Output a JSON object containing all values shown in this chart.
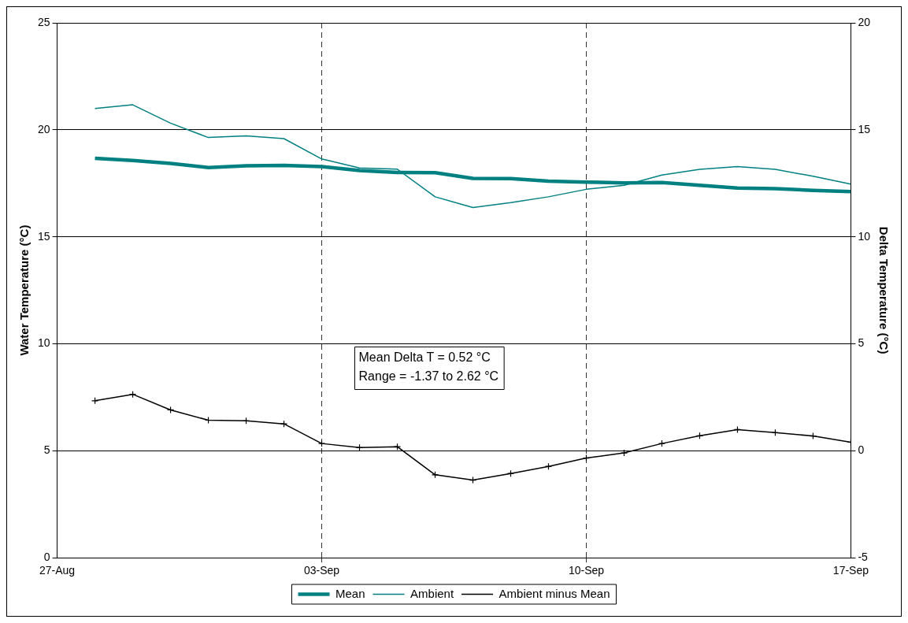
{
  "chart_data": {
    "type": "line",
    "ylabel": "Water Temperature (°C)",
    "y2label": "Delta Temperature (°C)",
    "x": [
      "--08-28",
      "--08-29",
      "--08-30",
      "--08-31",
      "--09-01",
      "--09-02",
      "--09-03",
      "--09-04",
      "--09-05",
      "--09-06",
      "--09-07",
      "--09-08",
      "--09-09",
      "--09-10",
      "--09-11",
      "--09-12",
      "--09-13",
      "--09-14",
      "--09-15",
      "--09-16",
      "--09-17"
    ],
    "xlim": [
      "--08-27",
      "--09-17"
    ],
    "xticks": [
      {
        "value": "--08-27",
        "label": "27-Aug"
      },
      {
        "value": "--09-03",
        "label": "03-Sep"
      },
      {
        "value": "--09-10",
        "label": "10-Sep"
      },
      {
        "value": "--09-17",
        "label": "17-Sep"
      }
    ],
    "ylim": [
      0,
      25
    ],
    "yticks": [
      0,
      5,
      10,
      15,
      20,
      25
    ],
    "y2lim": [
      -5,
      20
    ],
    "y2ticks": [
      -5,
      0,
      5,
      10,
      15,
      20
    ],
    "grid": true,
    "legend": "bottom",
    "series": [
      {
        "name": "Mean",
        "color": "#008080",
        "values": [
          18.67,
          18.57,
          18.43,
          18.24,
          18.32,
          18.34,
          18.28,
          18.1,
          18.01,
          18.0,
          17.73,
          17.72,
          17.6,
          17.56,
          17.52,
          17.54,
          17.41,
          17.28,
          17.25,
          17.17,
          17.11
        ]
      },
      {
        "name": "Ambient",
        "color": "#008080",
        "values": [
          21.0,
          21.17,
          20.31,
          19.64,
          19.72,
          19.59,
          18.64,
          18.22,
          18.16,
          16.87,
          16.37,
          16.6,
          16.87,
          17.22,
          17.41,
          17.89,
          18.15,
          18.28,
          18.15,
          17.83,
          17.46
        ]
      },
      {
        "name": "Ambient minus Mean",
        "color": "#000000",
        "axis": "y2",
        "marker": "cross",
        "values": [
          2.34,
          2.64,
          1.91,
          1.43,
          1.4,
          1.26,
          0.34,
          0.15,
          0.19,
          -1.12,
          -1.37,
          -1.06,
          -0.73,
          -0.34,
          -0.1,
          0.34,
          0.7,
          0.99,
          0.85,
          0.69,
          0.4
        ]
      }
    ],
    "annotations": [
      "Mean Delta T = 0.52 °C",
      "Range = -1.37 to 2.62 °C"
    ]
  }
}
